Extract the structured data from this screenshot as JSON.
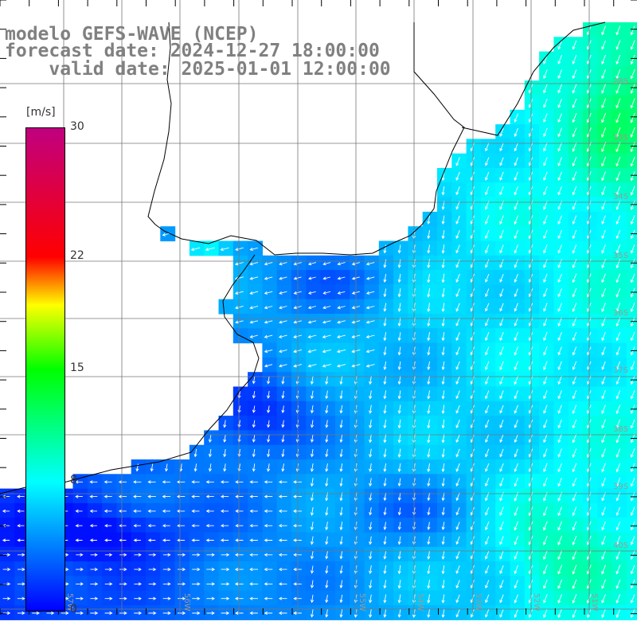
{
  "header": {
    "model": "modelo GEFS-WAVE (NCEP)",
    "forecast": "forecast date: 2024-12-27 18:00:00",
    "valid": "    valid date: 2025-01-01 12:00:00"
  },
  "colorbar": {
    "unit": "[m/s]",
    "labels": [
      {
        "value": 30,
        "text": "30"
      },
      {
        "value": 22,
        "text": "22"
      },
      {
        "value": 15,
        "text": "15"
      },
      {
        "value": 8,
        "text": "8"
      },
      {
        "value": 0,
        "text": "0"
      }
    ],
    "stops": [
      {
        "v": 0,
        "c": "#0000ff"
      },
      {
        "v": 8,
        "c": "#00ffff"
      },
      {
        "v": 15,
        "c": "#00ff00"
      },
      {
        "v": 19,
        "c": "#ffff00"
      },
      {
        "v": 22,
        "c": "#ff0000"
      },
      {
        "v": 30,
        "c": "#c00080"
      }
    ]
  },
  "lat_labels": [
    "28S",
    "33S",
    "34S",
    "35S",
    "36S",
    "37S",
    "38S",
    "39S",
    "40S"
  ],
  "lon_labels": [
    "57W",
    "56W",
    "55W",
    "54W",
    "53W",
    "52W",
    "51W"
  ],
  "colors": {
    "land": "#ffffff",
    "coast": "#000000",
    "grid": "#777777",
    "arrow": "#ffffff"
  }
}
